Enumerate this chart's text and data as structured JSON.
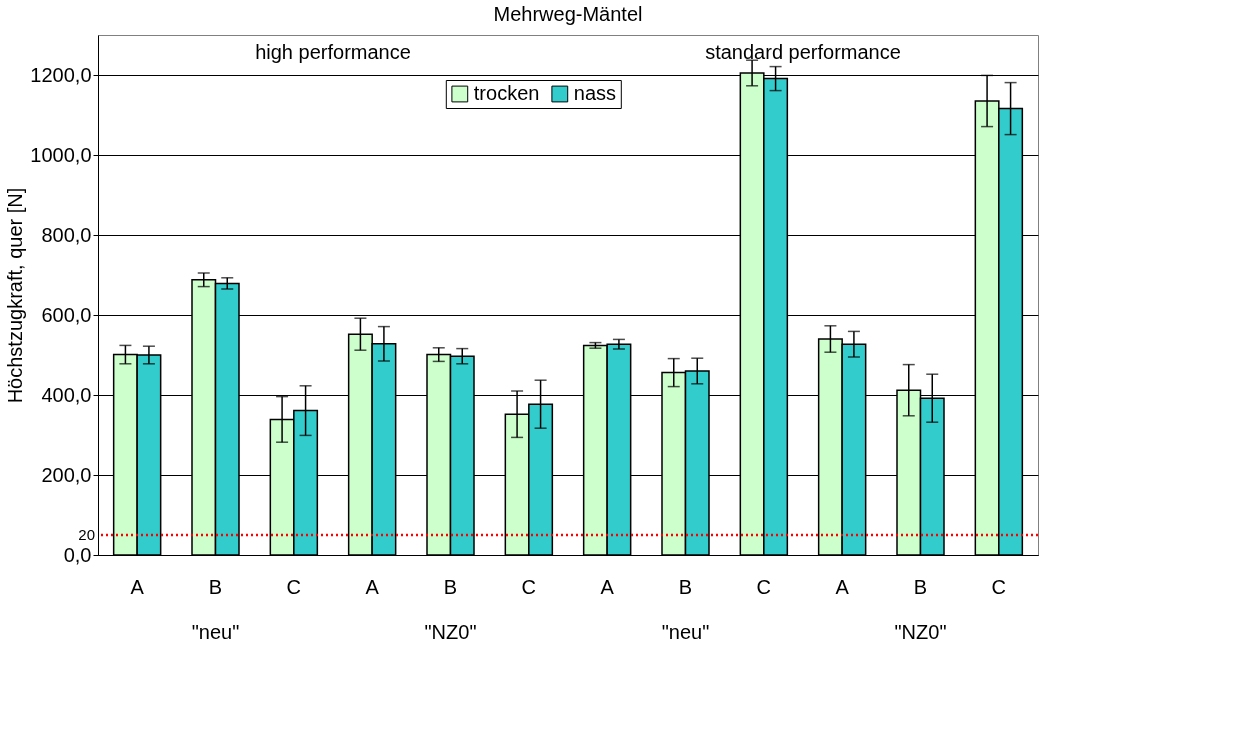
{
  "chart_data": {
    "type": "bar",
    "title": "Mehrweg-Mäntel",
    "ylabel": "Höchstzugkraft, quer [N]",
    "categories": [
      "A",
      "B",
      "C",
      "A",
      "B",
      "C",
      "A",
      "B",
      "C",
      "A",
      "B",
      "C"
    ],
    "series": [
      {
        "name": "trocken",
        "color": "#ccffcc",
        "values": [
          501,
          688,
          339,
          552,
          501,
          352,
          524,
          456,
          1205,
          540,
          412,
          1135
        ],
        "errors": [
          23,
          17,
          57,
          40,
          17,
          58,
          7,
          35,
          32,
          33,
          64,
          64
        ]
      },
      {
        "name": "nass",
        "color": "#33cccc",
        "values": [
          500,
          679,
          361,
          528,
          497,
          377,
          527,
          460,
          1191,
          527,
          392,
          1116
        ],
        "errors": [
          22,
          14,
          62,
          43,
          19,
          60,
          12,
          32,
          30,
          32,
          60,
          65
        ]
      }
    ],
    "ylim": [
      0,
      1300
    ],
    "yticks": [
      {
        "value": 0,
        "label": "0,0"
      },
      {
        "value": 200,
        "label": "200,0"
      },
      {
        "value": 400,
        "label": "400,0"
      },
      {
        "value": 600,
        "label": "600,0"
      },
      {
        "value": 800,
        "label": "800,0"
      },
      {
        "value": 1000,
        "label": "1000,0"
      },
      {
        "value": 1200,
        "label": "1200,0"
      }
    ],
    "grid": "y",
    "legend": "top",
    "ref_lines": [
      {
        "axis": "y",
        "value": 50,
        "color": "#ff0000",
        "line_style": "dotted"
      }
    ],
    "annotations": [
      "high performance",
      "standard performance",
      "\"neu\"",
      "\"NZ0\"",
      "\"neu\"",
      "\"NZ0\"",
      "20"
    ]
  }
}
